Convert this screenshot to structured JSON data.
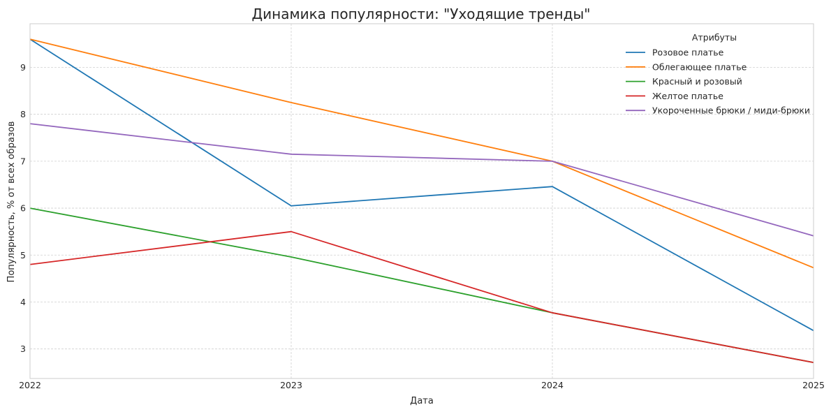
{
  "chart_data": {
    "type": "line",
    "title": "Динамика популярности: \"Уходящие тренды\"",
    "xlabel": "Дата",
    "ylabel": "Популярность, % от всех образов",
    "x": [
      2022,
      2023,
      2024,
      2025
    ],
    "x_tick_labels": [
      "2022",
      "2023",
      "2024",
      "2025"
    ],
    "xlim": [
      2022,
      2025
    ],
    "ylim": [
      2.37,
      9.93
    ],
    "y_ticks": [
      3,
      4,
      5,
      6,
      7,
      8,
      9
    ],
    "y_tick_labels": [
      "3",
      "4",
      "5",
      "6",
      "7",
      "8",
      "9"
    ],
    "grid": true,
    "legend": {
      "title": "Атрибуты",
      "placement": "top-right"
    },
    "series": [
      {
        "name": "Розовое платье",
        "color": "#1f77b4",
        "values": [
          9.6,
          6.05,
          6.46,
          3.39
        ]
      },
      {
        "name": "Облегающее платье",
        "color": "#ff7f0e",
        "values": [
          9.6,
          8.25,
          7.0,
          4.73
        ]
      },
      {
        "name": "Красный и розовый",
        "color": "#2ca02c",
        "values": [
          6.0,
          4.96,
          3.77,
          2.71
        ]
      },
      {
        "name": "Желтое платье",
        "color": "#d62728",
        "values": [
          4.8,
          5.5,
          3.77,
          2.71
        ]
      },
      {
        "name": "Укороченные брюки / миди-брюки",
        "color": "#9467bd",
        "values": [
          7.8,
          7.15,
          7.0,
          5.41
        ]
      }
    ]
  }
}
